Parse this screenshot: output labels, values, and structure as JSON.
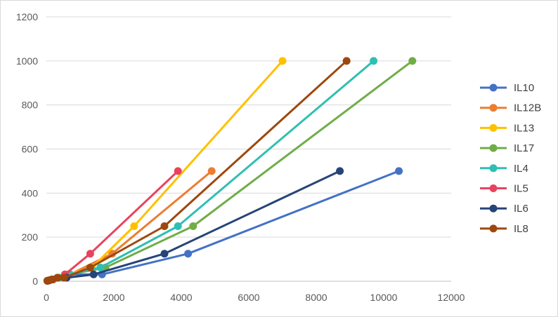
{
  "chart_data": {
    "type": "scatter",
    "title": "",
    "xlabel": "",
    "ylabel": "",
    "xlim": [
      0,
      12000
    ],
    "ylim": [
      0,
      1200
    ],
    "xticks": [
      0,
      2000,
      4000,
      6000,
      8000,
      10000,
      12000
    ],
    "yticks": [
      0,
      200,
      400,
      600,
      800,
      1000,
      1200
    ],
    "grid": "horizontal",
    "legend": "right",
    "lines_with_markers": true,
    "series": [
      {
        "name": "IL10",
        "color": "#4472C4",
        "points": [
          [
            30,
            2
          ],
          [
            80,
            4
          ],
          [
            170,
            8
          ],
          [
            330,
            16
          ],
          [
            650,
            31
          ],
          [
            1650,
            31
          ],
          [
            4200,
            125
          ],
          [
            10450,
            500
          ]
        ]
      },
      {
        "name": "IL12B",
        "color": "#ED7D31",
        "points": [
          [
            30,
            2
          ],
          [
            80,
            4
          ],
          [
            180,
            8
          ],
          [
            380,
            16
          ],
          [
            700,
            31
          ],
          [
            1950,
            125
          ],
          [
            4900,
            500
          ]
        ]
      },
      {
        "name": "IL13",
        "color": "#FFC000",
        "points": [
          [
            30,
            2
          ],
          [
            80,
            4
          ],
          [
            160,
            8
          ],
          [
            330,
            16
          ],
          [
            650,
            31
          ],
          [
            1350,
            62
          ],
          [
            2600,
            250
          ],
          [
            7000,
            1000
          ]
        ]
      },
      {
        "name": "IL17",
        "color": "#70AD47",
        "points": [
          [
            30,
            2
          ],
          [
            80,
            4
          ],
          [
            190,
            8
          ],
          [
            380,
            16
          ],
          [
            700,
            31
          ],
          [
            1750,
            62
          ],
          [
            4350,
            250
          ],
          [
            10850,
            1000
          ]
        ]
      },
      {
        "name": "IL4",
        "color": "#2FBFB2",
        "points": [
          [
            30,
            2
          ],
          [
            80,
            4
          ],
          [
            180,
            8
          ],
          [
            360,
            16
          ],
          [
            680,
            31
          ],
          [
            1600,
            62
          ],
          [
            3900,
            250
          ],
          [
            9700,
            1000
          ]
        ]
      },
      {
        "name": "IL5",
        "color": "#E8435E",
        "points": [
          [
            30,
            2
          ],
          [
            90,
            4
          ],
          [
            200,
            8
          ],
          [
            550,
            31
          ],
          [
            1300,
            125
          ],
          [
            3900,
            500
          ]
        ]
      },
      {
        "name": "IL6",
        "color": "#264478",
        "points": [
          [
            30,
            2
          ],
          [
            80,
            4
          ],
          [
            170,
            8
          ],
          [
            330,
            16
          ],
          [
            600,
            16
          ],
          [
            1400,
            31
          ],
          [
            3500,
            125
          ],
          [
            8700,
            500
          ]
        ]
      },
      {
        "name": "IL8",
        "color": "#9E480E",
        "points": [
          [
            30,
            2
          ],
          [
            80,
            4
          ],
          [
            170,
            8
          ],
          [
            330,
            16
          ],
          [
            520,
            16
          ],
          [
            1300,
            62
          ],
          [
            3500,
            250
          ],
          [
            8900,
            1000
          ]
        ]
      }
    ]
  }
}
